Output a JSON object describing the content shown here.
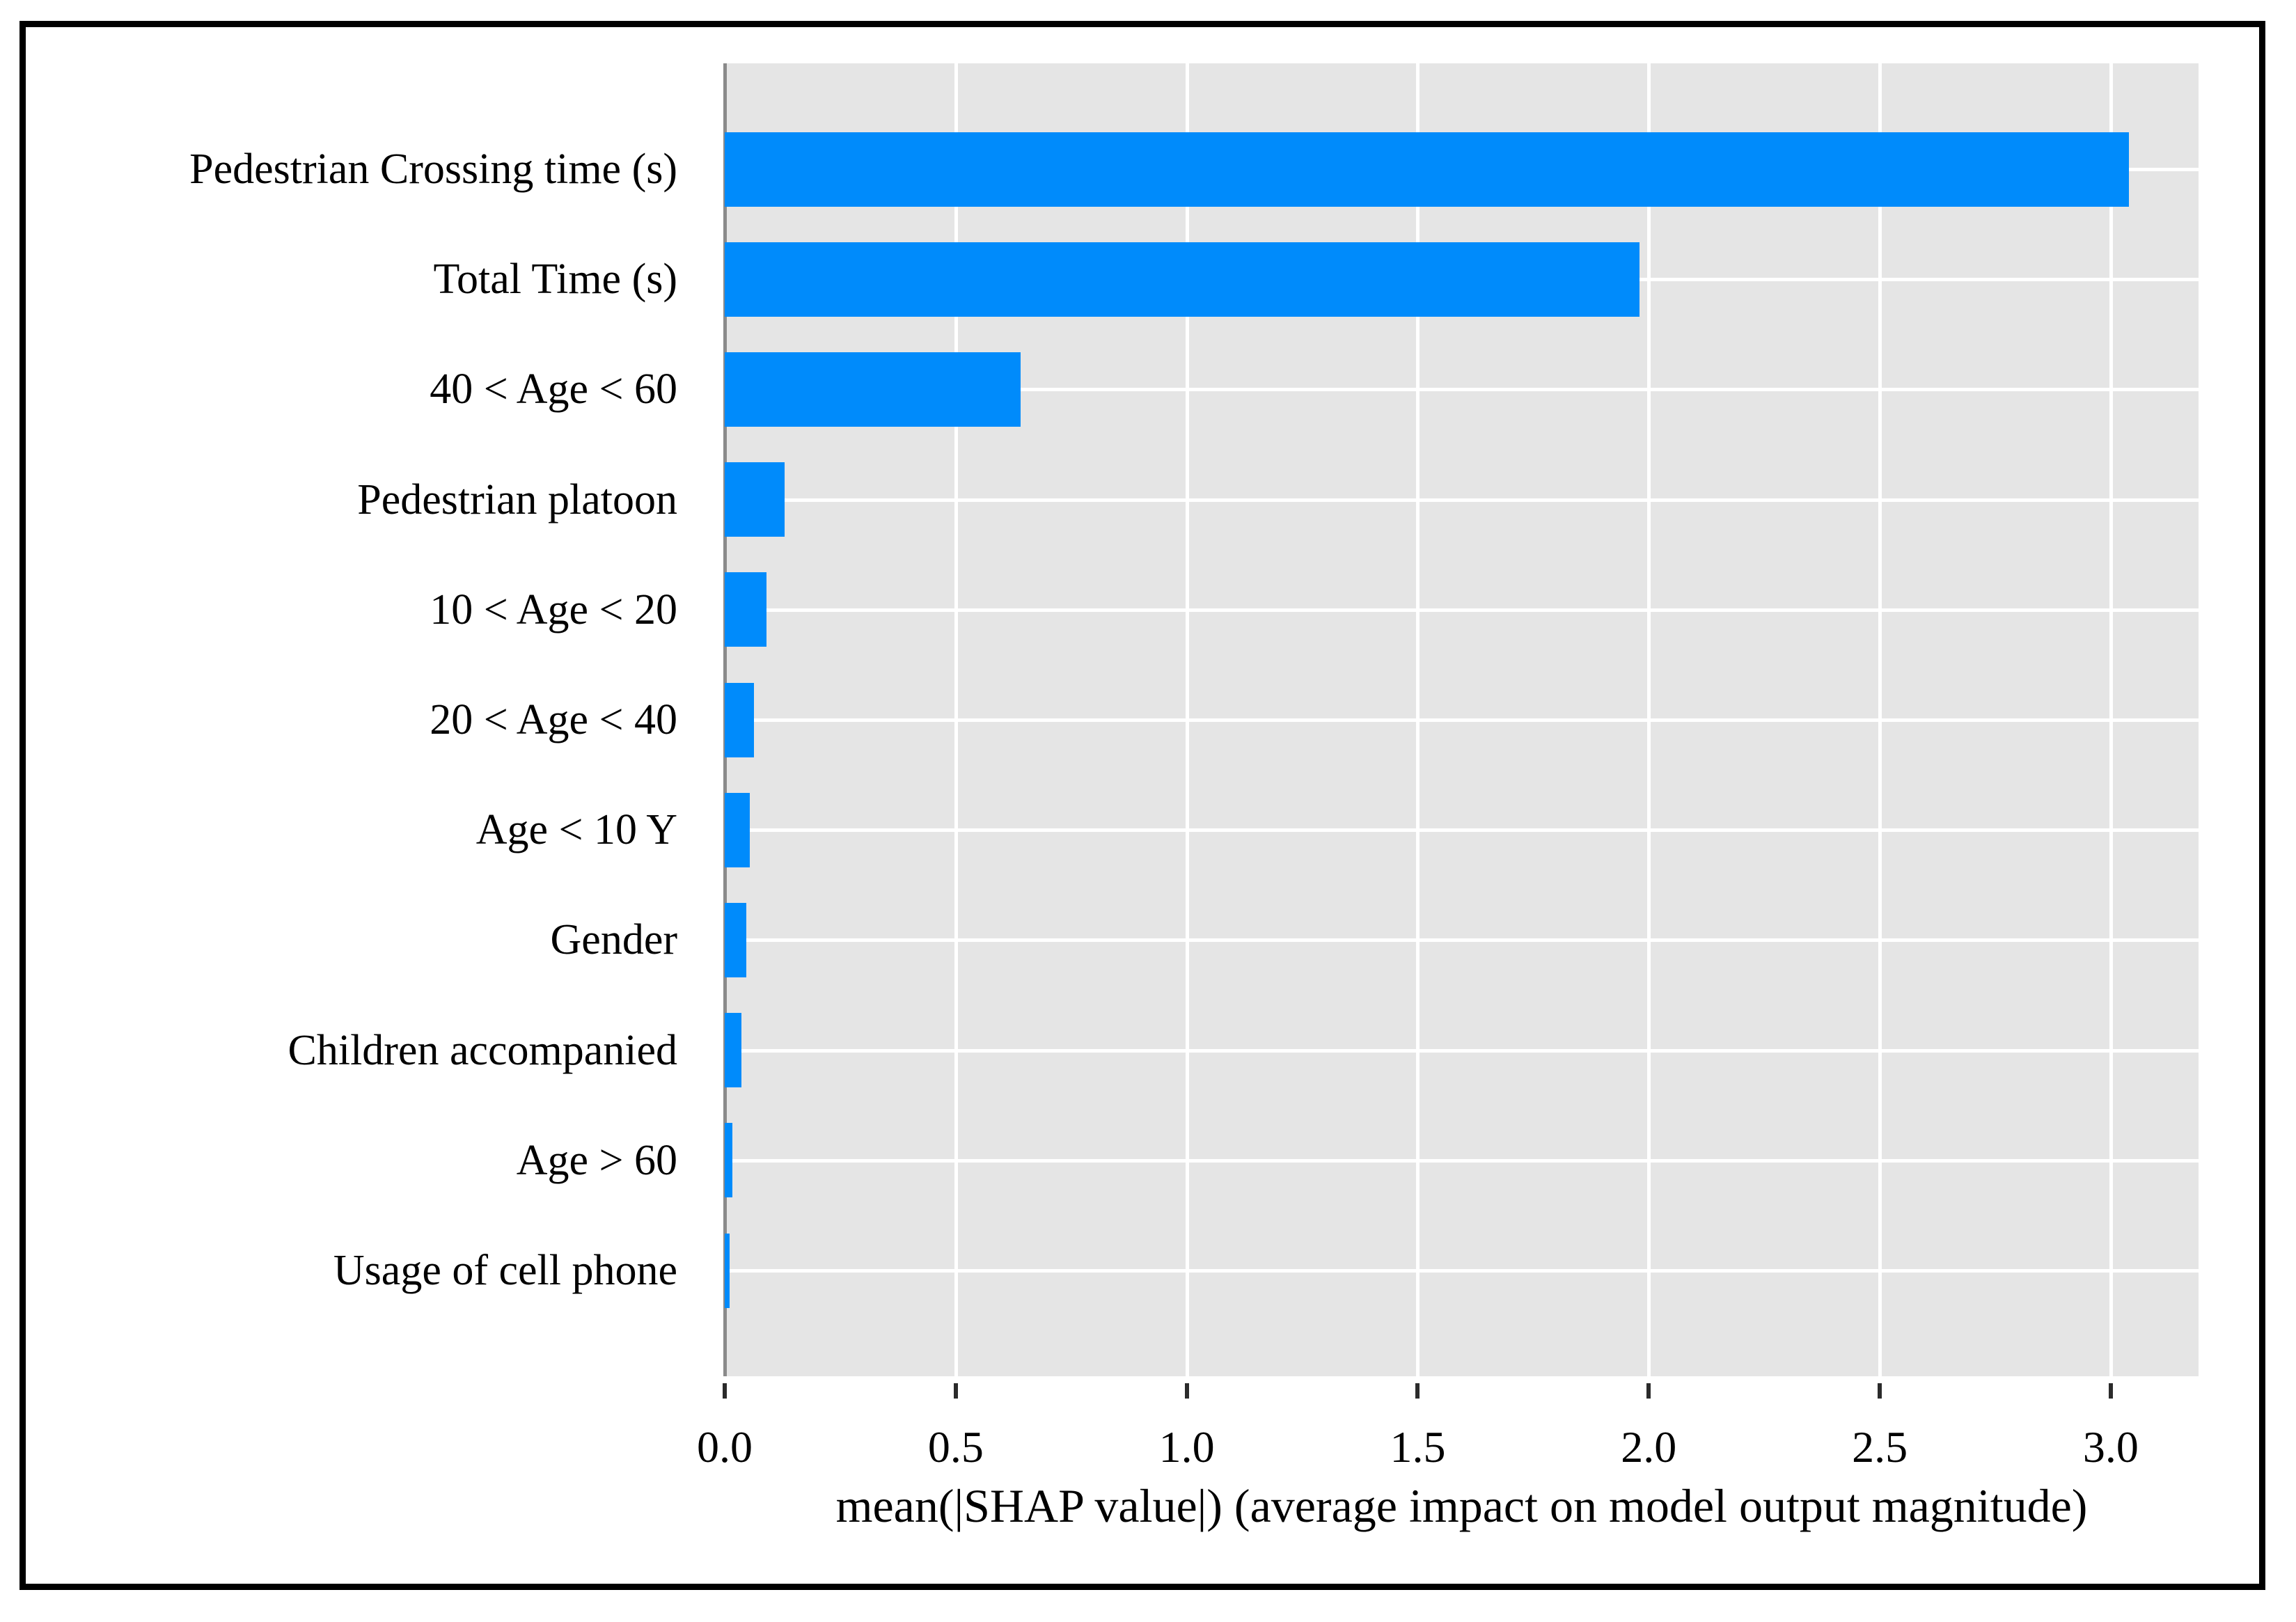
{
  "figure": {
    "border_color": "#000000",
    "background_color": "#ffffff"
  },
  "chart_data": {
    "type": "bar",
    "orientation": "horizontal",
    "title": "",
    "xlabel": "mean(|SHAP value|) (average impact on model output magnitude)",
    "ylabel": "",
    "categories": [
      "Pedestrian Crossing time (s)",
      "Total Time (s)",
      "40 < Age < 60",
      "Pedestrian platoon",
      "10 < Age < 20",
      "20 < Age < 40",
      "Age < 10 Y",
      "Gender",
      "Children accompanied",
      "Age > 60",
      "Usage of cell phone"
    ],
    "values": [
      3.04,
      1.98,
      0.64,
      0.13,
      0.09,
      0.064,
      0.054,
      0.046,
      0.036,
      0.016,
      0.01
    ],
    "xticks": [
      0.0,
      0.5,
      1.0,
      1.5,
      2.0,
      2.5,
      3.0
    ],
    "xtick_labels": [
      "0.0",
      "0.5",
      "1.0",
      "1.5",
      "2.0",
      "2.5",
      "3.0"
    ],
    "xlim": [
      0,
      3.19
    ],
    "grid": "major gridlines, white on gray panel",
    "legend": null,
    "bar_color": "#008bfb",
    "panel_background": "#e5e5e5",
    "zero_line_color": "#8a8a8a"
  }
}
